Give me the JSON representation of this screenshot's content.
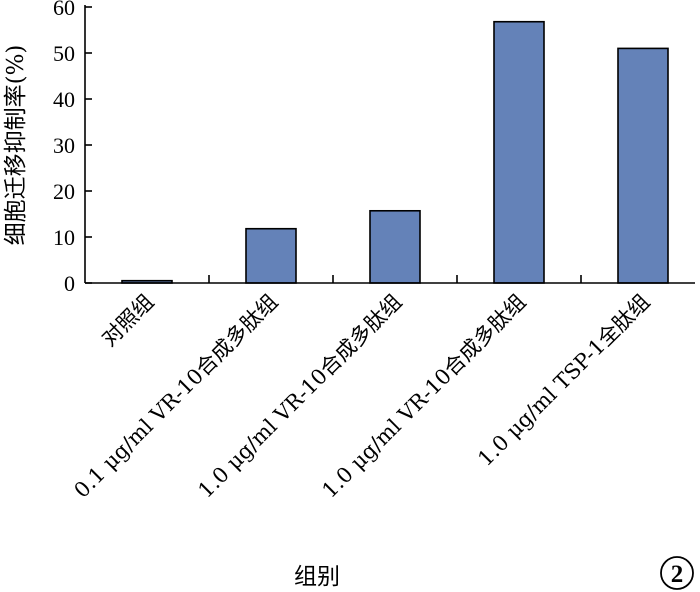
{
  "chart_data": {
    "type": "bar",
    "categories": [
      "对照组",
      "0.1 μg/ml VR-10合成多肽组",
      "1.0 μg/ml VR-10合成多肽组",
      "1.0 μg/ml VR-10合成多肽组",
      "1.0 μg/ml TSP-1全肽组"
    ],
    "values": [
      0.5,
      11.8,
      15.7,
      56.8,
      51.0
    ],
    "xlabel": "组别",
    "ylabel": "细胞迁移抑制率(%)",
    "ylim": [
      0,
      60
    ],
    "yticks": [
      0,
      10,
      20,
      30,
      40,
      50,
      60
    ],
    "bar_color": "#6482b8",
    "grid": false,
    "legend": "none"
  },
  "panel_number": "2"
}
